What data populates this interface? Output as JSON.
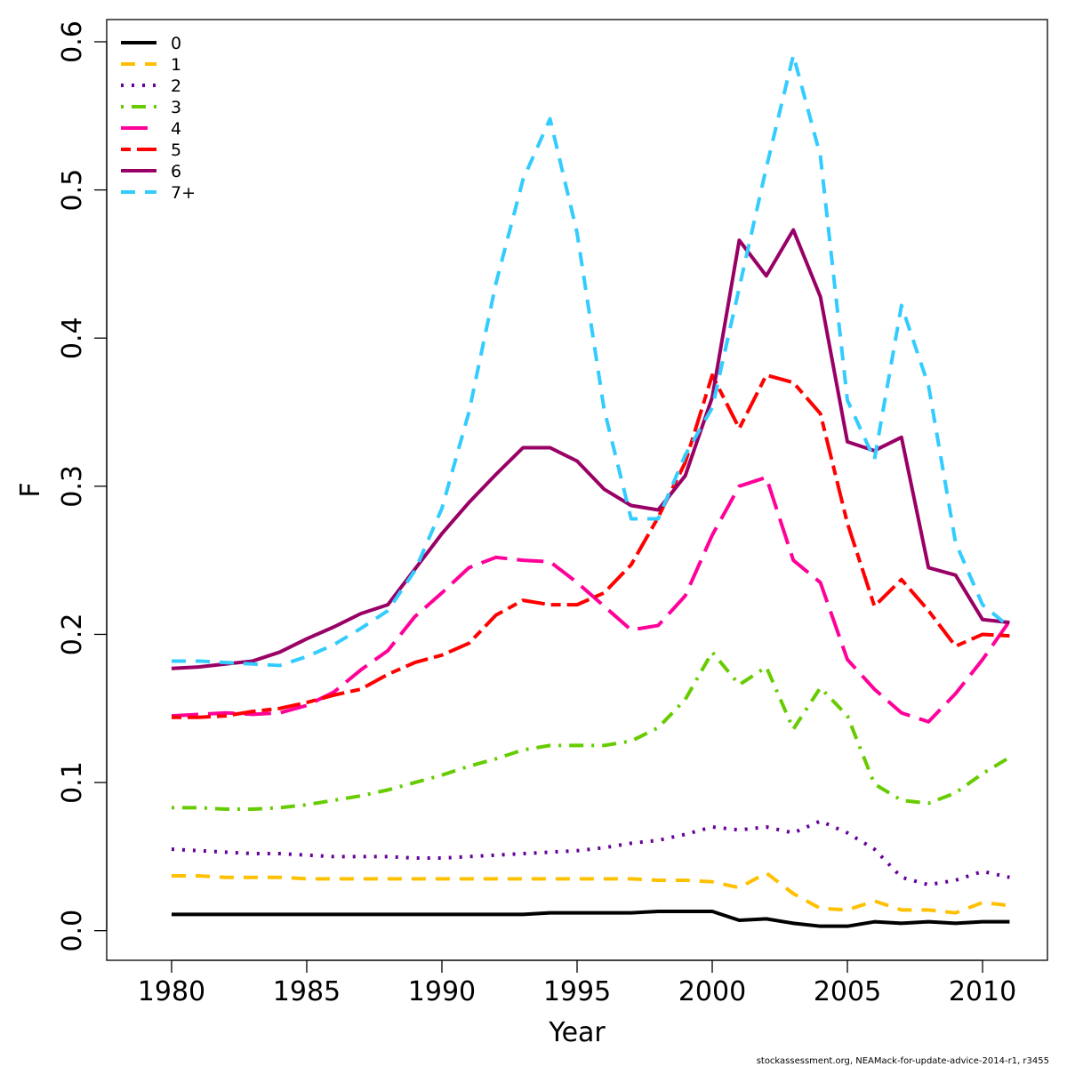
{
  "chart_data": {
    "type": "line",
    "xlabel": "Year",
    "ylabel": "F",
    "xlim": [
      1977.6,
      2012.4
    ],
    "ylim": [
      -0.02,
      0.615
    ],
    "xticks": [
      "1980",
      "1985",
      "1990",
      "1995",
      "2000",
      "2005",
      "2010"
    ],
    "yticks": [
      "0.0",
      "0.1",
      "0.2",
      "0.3",
      "0.4",
      "0.5",
      "0.6"
    ],
    "grid": false,
    "legend_position": "top-left",
    "x": [
      1980,
      1981,
      1982,
      1983,
      1984,
      1985,
      1986,
      1987,
      1988,
      1989,
      1990,
      1991,
      1992,
      1993,
      1994,
      1995,
      1996,
      1997,
      1998,
      1999,
      2000,
      2001,
      2002,
      2003,
      2004,
      2005,
      2006,
      2007,
      2008,
      2009,
      2010,
      2011
    ],
    "series": [
      {
        "name": "0",
        "color": "#000000",
        "dash": "solid",
        "values": [
          0.011,
          0.011,
          0.011,
          0.011,
          0.011,
          0.011,
          0.011,
          0.011,
          0.011,
          0.011,
          0.011,
          0.011,
          0.011,
          0.011,
          0.012,
          0.012,
          0.012,
          0.012,
          0.013,
          0.013,
          0.013,
          0.007,
          0.008,
          0.005,
          0.003,
          0.003,
          0.006,
          0.005,
          0.006,
          0.005,
          0.006,
          0.006
        ]
      },
      {
        "name": "1",
        "color": "#FFC000",
        "dash": "dashed",
        "values": [
          0.037,
          0.037,
          0.036,
          0.036,
          0.036,
          0.035,
          0.035,
          0.035,
          0.035,
          0.035,
          0.035,
          0.035,
          0.035,
          0.035,
          0.035,
          0.035,
          0.035,
          0.035,
          0.034,
          0.034,
          0.033,
          0.029,
          0.039,
          0.025,
          0.015,
          0.014,
          0.02,
          0.014,
          0.014,
          0.012,
          0.019,
          0.017
        ]
      },
      {
        "name": "2",
        "color": "#660099",
        "dash": "dotted",
        "values": [
          0.055,
          0.054,
          0.053,
          0.052,
          0.052,
          0.051,
          0.05,
          0.05,
          0.05,
          0.049,
          0.049,
          0.05,
          0.051,
          0.052,
          0.053,
          0.054,
          0.056,
          0.059,
          0.061,
          0.065,
          0.07,
          0.068,
          0.07,
          0.066,
          0.074,
          0.066,
          0.055,
          0.036,
          0.031,
          0.034,
          0.04,
          0.036
        ]
      },
      {
        "name": "3",
        "color": "#66CC00",
        "dash": "dotdash",
        "values": [
          0.083,
          0.083,
          0.082,
          0.082,
          0.083,
          0.085,
          0.088,
          0.091,
          0.095,
          0.1,
          0.105,
          0.111,
          0.116,
          0.122,
          0.125,
          0.125,
          0.125,
          0.128,
          0.137,
          0.156,
          0.188,
          0.166,
          0.178,
          0.136,
          0.164,
          0.145,
          0.099,
          0.088,
          0.086,
          0.093,
          0.106,
          0.117
        ]
      },
      {
        "name": "4",
        "color": "#FF0099",
        "dash": "longdash",
        "values": [
          0.145,
          0.146,
          0.147,
          0.146,
          0.147,
          0.152,
          0.161,
          0.176,
          0.189,
          0.212,
          0.228,
          0.245,
          0.252,
          0.25,
          0.249,
          0.235,
          0.219,
          0.203,
          0.206,
          0.226,
          0.267,
          0.3,
          0.306,
          0.25,
          0.235,
          0.183,
          0.163,
          0.147,
          0.141,
          0.16,
          0.183,
          0.209
        ]
      },
      {
        "name": "5",
        "color": "#FF0000",
        "dash": "twodash",
        "values": [
          0.144,
          0.144,
          0.145,
          0.148,
          0.15,
          0.154,
          0.159,
          0.163,
          0.173,
          0.181,
          0.186,
          0.194,
          0.213,
          0.223,
          0.22,
          0.22,
          0.228,
          0.247,
          0.279,
          0.316,
          0.375,
          0.339,
          0.375,
          0.37,
          0.349,
          0.275,
          0.219,
          0.237,
          0.216,
          0.192,
          0.2,
          0.199
        ]
      },
      {
        "name": "6",
        "color": "#990066",
        "dash": "solid",
        "values": [
          0.177,
          0.178,
          0.18,
          0.182,
          0.188,
          0.197,
          0.205,
          0.214,
          0.22,
          0.244,
          0.268,
          0.289,
          0.308,
          0.326,
          0.326,
          0.317,
          0.298,
          0.287,
          0.284,
          0.307,
          0.36,
          0.466,
          0.442,
          0.473,
          0.428,
          0.33,
          0.324,
          0.333,
          0.245,
          0.24,
          0.21,
          0.208
        ]
      },
      {
        "name": "7+",
        "color": "#33CCFF",
        "dash": "dashed",
        "values": [
          0.182,
          0.182,
          0.181,
          0.18,
          0.179,
          0.185,
          0.193,
          0.204,
          0.216,
          0.243,
          0.285,
          0.35,
          0.437,
          0.507,
          0.548,
          0.471,
          0.352,
          0.278,
          0.278,
          0.321,
          0.353,
          0.434,
          0.515,
          0.591,
          0.523,
          0.358,
          0.318,
          0.422,
          0.368,
          0.262,
          0.22,
          0.205
        ]
      }
    ]
  },
  "footer": "stockassessment.org, NEAMack-for-update-advice-2014-r1, r3455"
}
